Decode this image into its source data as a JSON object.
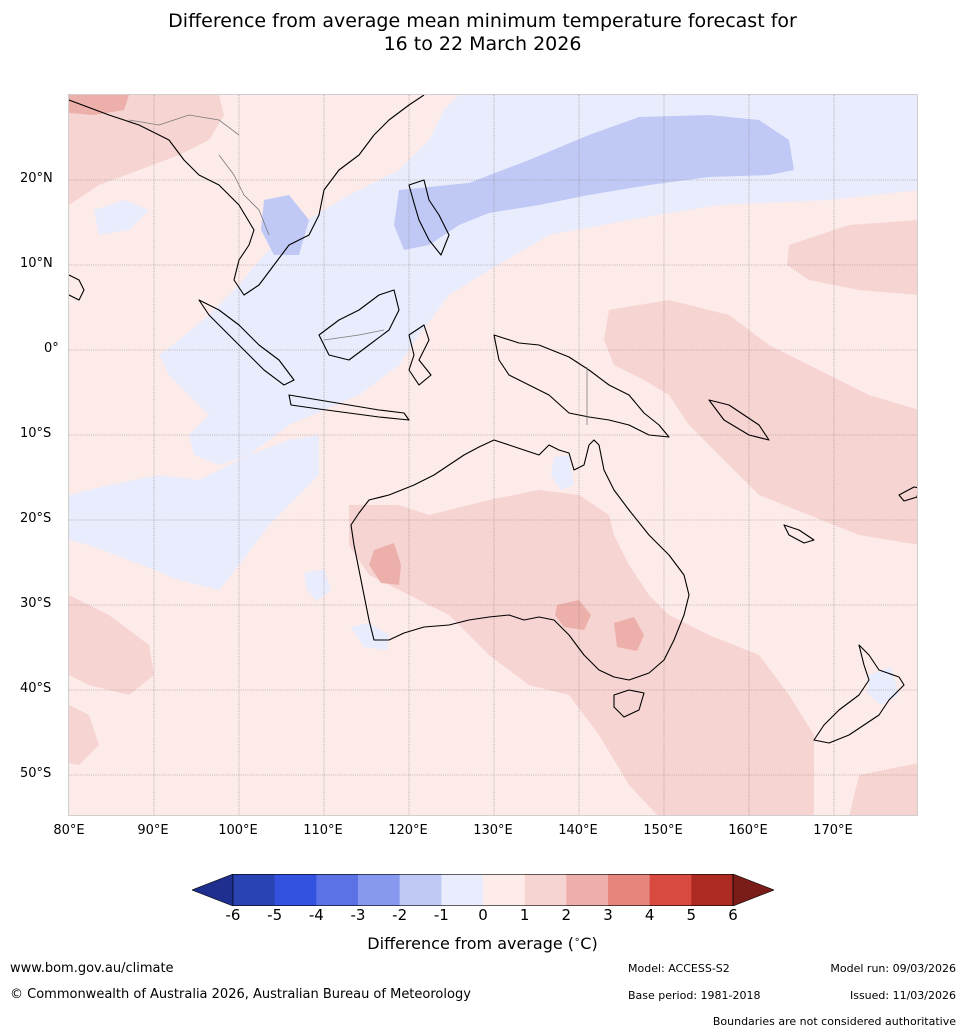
{
  "title": {
    "line1": "Difference from average mean minimum temperature forecast for",
    "line2": "16 to 22 March 2026"
  },
  "map": {
    "lat_labels": [
      "20°N",
      "10°N",
      "0°",
      "10°S",
      "20°S",
      "30°S",
      "40°S",
      "50°S"
    ],
    "lon_labels": [
      "80°E",
      "90°E",
      "100°E",
      "110°E",
      "120°E",
      "130°E",
      "140°E",
      "150°E",
      "160°E",
      "170°E"
    ],
    "extent": {
      "lon": [
        80,
        180
      ],
      "lat": [
        -55,
        30
      ]
    }
  },
  "legend": {
    "ticks": [
      "-6",
      "-5",
      "-4",
      "-3",
      "-2",
      "-1",
      "0",
      "1",
      "2",
      "3",
      "4",
      "5",
      "6"
    ],
    "colors": [
      "#1f2f8f",
      "#2a43b3",
      "#3352e0",
      "#5a72e6",
      "#8699ee",
      "#c0c9f5",
      "#e8ecfc",
      "#fdecea",
      "#f6d4d1",
      "#edafaa",
      "#e5857e",
      "#d84a40",
      "#ad2a22",
      "#7a1c17"
    ],
    "label": "Difference from average (",
    "unit": "C)"
  },
  "footer": {
    "website": "www.bom.gov.au/climate",
    "copyright": "© Commonwealth of Australia 2026, Australian Bureau of Meteorology",
    "model": "Model: ACCESS-S2",
    "base_period": "Base period: 1981-2018",
    "model_run": "Model run: 09/03/2026",
    "issued": "Issued: 11/03/2026",
    "disclaimer": "Boundaries are not considered authoritative"
  }
}
